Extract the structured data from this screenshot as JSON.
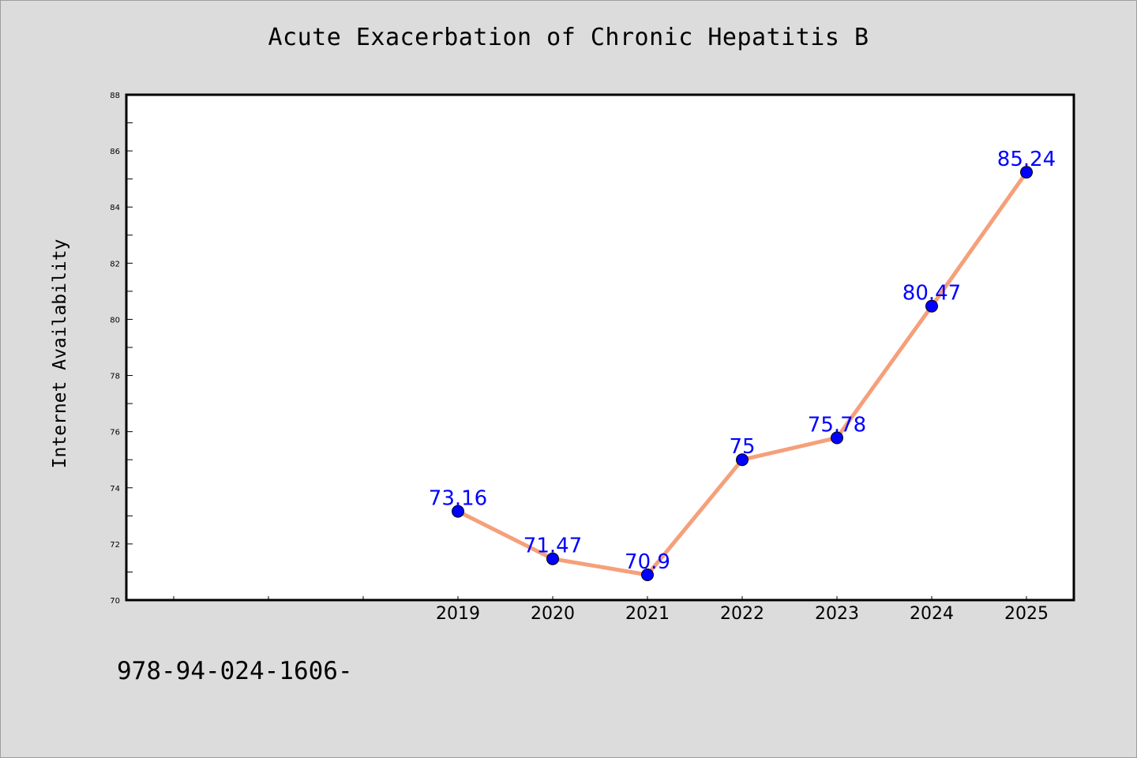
{
  "chart_data": {
    "type": "line",
    "title": "Acute Exacerbation of Chronic Hepatitis B",
    "xlabel": "",
    "ylabel": "Internet Availability",
    "categories": [
      "2019",
      "2020",
      "2021",
      "2022",
      "2023",
      "2024",
      "2025"
    ],
    "series": [
      {
        "values": [
          73.16,
          71.47,
          70.9,
          75,
          75.78,
          80.47,
          85.24
        ],
        "labels": [
          "73.16",
          "71.47",
          "70.9",
          "75",
          "75.78",
          "80.47",
          "85.24"
        ]
      }
    ],
    "ylim": [
      70,
      88
    ],
    "yticks": [
      "70",
      "72",
      "74",
      "76",
      "78",
      "80",
      "82",
      "84",
      "86",
      "88"
    ],
    "grid": false,
    "legend": "none",
    "colors": {
      "line": "#f5a07a",
      "marker": "#0000ff",
      "label": "#0000ff",
      "background": "#dcdcdc",
      "plot_background": "#ffffff"
    }
  },
  "footer": {
    "text": "978-94-024-1606-"
  }
}
